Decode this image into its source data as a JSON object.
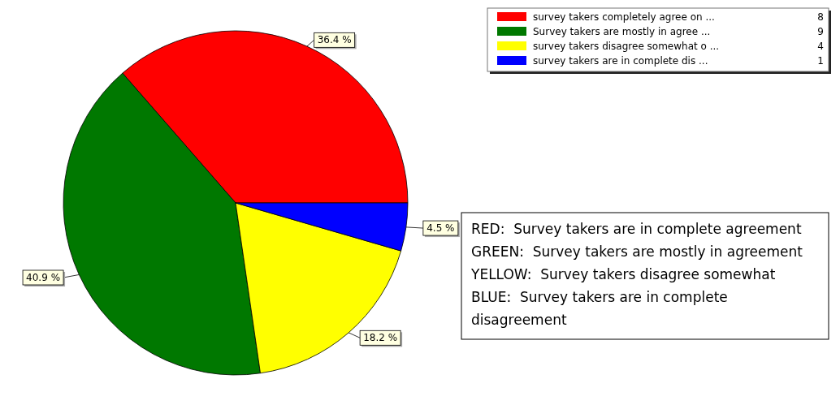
{
  "chart_data": {
    "type": "pie",
    "categories": [
      "survey takers completely agree on ...",
      "Survey takers are mostly in agree ...",
      "survey takers disagree somewhat o ...",
      "survey takers are in complete dis ..."
    ],
    "values": [
      36.4,
      40.9,
      18.2,
      4.5
    ],
    "value_labels": [
      "36.4 %",
      "40.9 %",
      "18.2 %",
      "4.5 %"
    ],
    "colors": [
      "#ff0000",
      "#007800",
      "#ffff00",
      "#0000ff"
    ],
    "legend": "top right",
    "annotations": [
      "8",
      "9",
      "4",
      "1",
      "RED:  Survey takers are in complete agreement",
      "GREEN:  Survey takers are mostly in agreement",
      "YELLOW:  Survey takers disagree somewhat",
      "BLUE:  Survey takers are in complete disagreement"
    ]
  }
}
